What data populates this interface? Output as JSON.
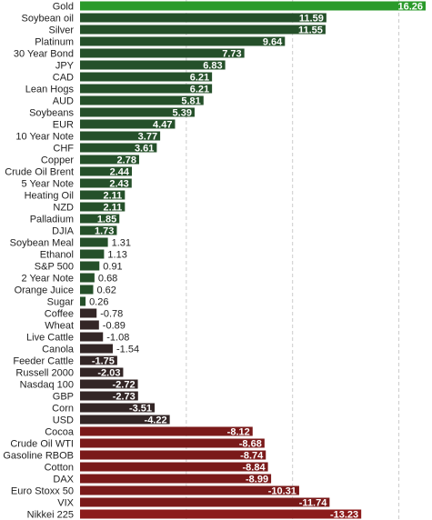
{
  "chart_data": {
    "type": "bar",
    "orientation": "horizontal",
    "title": "",
    "xlabel": "",
    "ylabel": "",
    "grid": true,
    "categories": [
      "Gold",
      "Soybean oil",
      "Silver",
      "Platinum",
      "30 Year Bond",
      "JPY",
      "CAD",
      "Lean Hogs",
      "AUD",
      "Soybeans",
      "EUR",
      "10 Year Note",
      "CHF",
      "Copper",
      "Crude Oil Brent",
      "5 Year Note",
      "Heating Oil",
      "NZD",
      "Palladium",
      "DJIA",
      "Soybean Meal",
      "Ethanol",
      "S&P 500",
      "2 Year Note",
      "Orange Juice",
      "Sugar",
      "Coffee",
      "Wheat",
      "Live Cattle",
      "Canola",
      "Feeder Cattle",
      "Russell 2000",
      "Nasdaq 100",
      "GBP",
      "Corn",
      "USD",
      "Cocoa",
      "Crude Oil WTI",
      "Gasoline RBOB",
      "Cotton",
      "DAX",
      "Euro Stoxx 50",
      "VIX",
      "Nikkei 225"
    ],
    "values": [
      16.26,
      11.59,
      11.55,
      9.64,
      7.73,
      6.83,
      6.21,
      6.21,
      5.81,
      5.39,
      4.47,
      3.77,
      3.61,
      2.78,
      2.44,
      2.43,
      2.11,
      2.11,
      1.85,
      1.73,
      1.31,
      1.13,
      0.91,
      0.68,
      0.62,
      0.26,
      -0.78,
      -0.89,
      -1.08,
      -1.54,
      -1.75,
      -2.03,
      -2.72,
      -2.73,
      -3.51,
      -4.22,
      -8.12,
      -8.68,
      -8.74,
      -8.84,
      -8.99,
      -10.31,
      -11.74,
      -13.23
    ],
    "value_labels": [
      "16.26",
      "11.59",
      "11.55",
      "9.64",
      "7.73",
      "6.83",
      "6.21",
      "6.21",
      "5.81",
      "5.39",
      "4.47",
      "3.77",
      "3.61",
      "2.78",
      "2.44",
      "2.43",
      "2.11",
      "2.11",
      "1.85",
      "1.73",
      "1.31",
      "1.13",
      "0.91",
      "0.68",
      "0.62",
      "0.26",
      "-0.78",
      "-0.89",
      "-1.08",
      "-1.54",
      "-1.75",
      "-2.03",
      "-2.72",
      "-2.73",
      "-3.51",
      "-4.22",
      "-8.12",
      "-8.68",
      "-8.74",
      "-8.84",
      "-8.99",
      "-10.31",
      "-11.74",
      "-13.23"
    ],
    "colors": {
      "top": "#2a9a2a",
      "positive": "#25502a",
      "small_negative": "#332626",
      "large_negative": "#7a1a1a",
      "bottom": "#8c1b1b"
    }
  }
}
